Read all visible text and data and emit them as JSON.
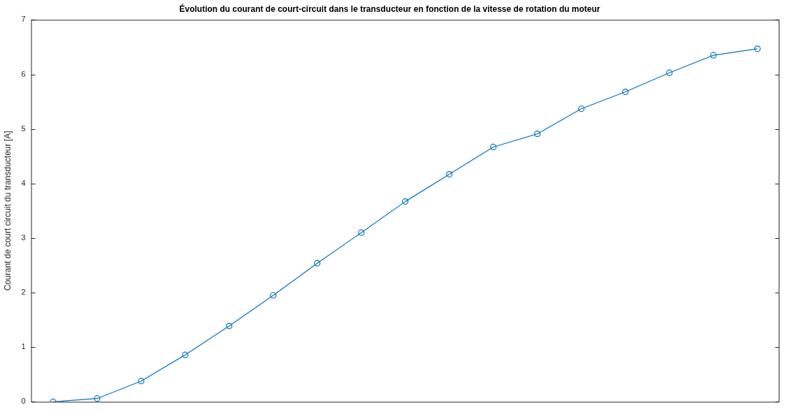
{
  "chart_data": {
    "type": "line",
    "title": "Évolution du courant de court-circuit dans le transducteur en fonction de la vitesse de rotation du moteur",
    "ylabel": "Courant de court circuit du transducteur [A]",
    "categories": [
      null,
      null,
      null,
      null,
      null,
      null,
      null,
      null,
      null,
      null,
      null,
      null,
      null,
      null,
      null,
      null,
      null
    ],
    "series": [
      {
        "color": "#0072bd",
        "values": [
          0.0,
          0.06,
          0.38,
          0.86,
          1.39,
          1.95,
          2.54,
          3.1,
          3.67,
          4.17,
          4.67,
          4.91,
          5.37,
          5.68,
          6.03,
          6.35,
          6.47
        ]
      }
    ],
    "ylim": [
      0,
      7
    ],
    "yticks": [
      0,
      1,
      2,
      3,
      4,
      5,
      6,
      7
    ],
    "grid": false,
    "legend": false,
    "marker": "circle",
    "line_style": "solid",
    "tick_labels": "y"
  }
}
